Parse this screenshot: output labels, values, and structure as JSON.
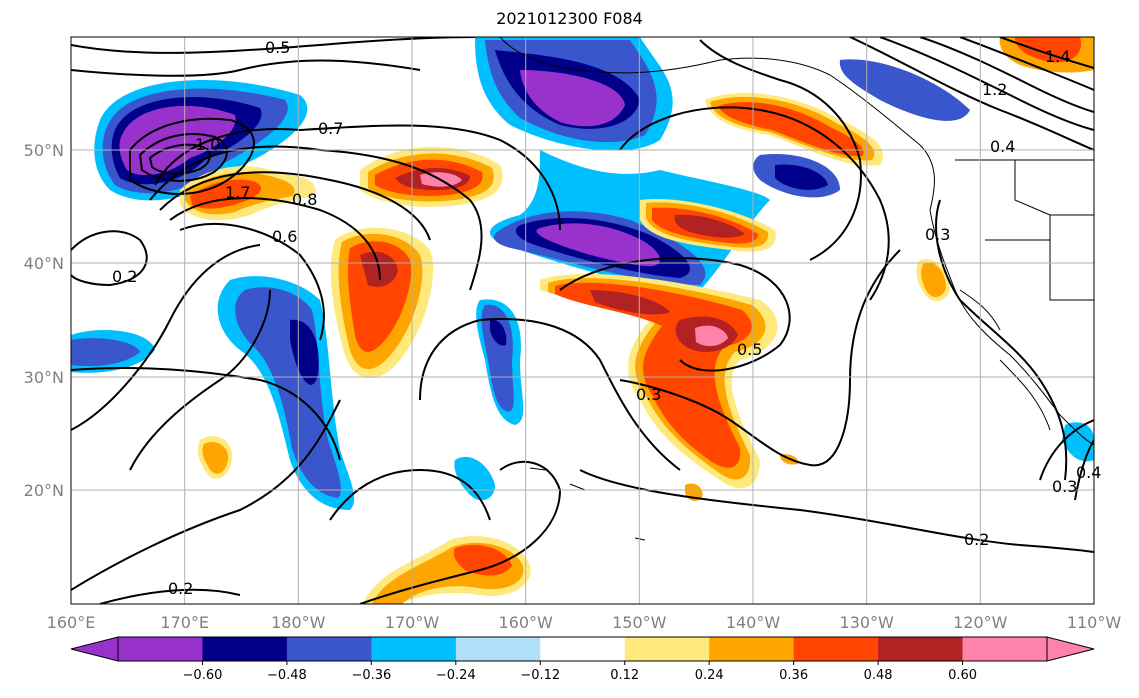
{
  "title": "2021012300 F084",
  "map": {
    "lon_ticks": [
      "160°E",
      "170°E",
      "180°W",
      "170°W",
      "160°W",
      "150°W",
      "140°W",
      "130°W",
      "120°W",
      "110°W"
    ],
    "lat_ticks": [
      "50°N",
      "40°N",
      "30°N",
      "20°N"
    ],
    "contour_labels": [
      "0.5",
      "1.0",
      "0.7",
      "0.8",
      "1.7",
      "0.6",
      "0.2",
      "0.5",
      "0.3",
      "0.2",
      "0.2",
      "1.2",
      "1.4",
      "0.4",
      "0.3",
      "0.3",
      "0.4"
    ]
  },
  "colorbar": {
    "ticks": [
      "−0.60",
      "−0.48",
      "−0.36",
      "−0.24",
      "−0.12",
      "0.12",
      "0.24",
      "0.36",
      "0.48",
      "0.60"
    ],
    "colors": [
      "#9932cc",
      "#00008b",
      "#3a56cc",
      "#00bfff",
      "#b0e0f8",
      "#ffffff",
      "#ffe87c",
      "#ffa500",
      "#ff4500",
      "#b22222",
      "#ff82ab"
    ]
  }
}
